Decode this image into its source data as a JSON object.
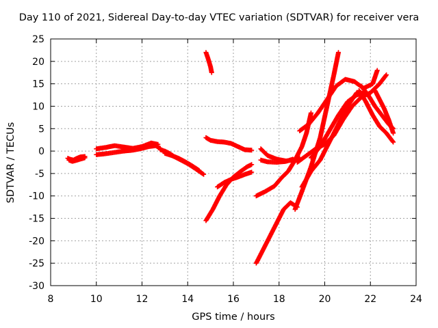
{
  "chart_data": {
    "type": "scatter",
    "title": "Day 110 of 2021, Sidereal Day-to-day VTEC variation (SDTVAR) for receiver vera",
    "xlabel": "GPS time / hours",
    "ylabel": "SDTVAR / TECUs",
    "xlim": [
      8,
      24
    ],
    "ylim": [
      -30,
      25
    ],
    "xticks": [
      8,
      10,
      12,
      14,
      16,
      18,
      20,
      22,
      24
    ],
    "yticks": [
      -30,
      -25,
      -20,
      -15,
      -10,
      -5,
      0,
      5,
      10,
      15,
      20,
      25
    ],
    "grid": true,
    "marker": "+",
    "color": "#ff0000",
    "series": [
      {
        "x": [
          8.75,
          8.9,
          9.0,
          9.15,
          9.3,
          9.5
        ],
        "y": [
          -1.6,
          -1.9,
          -2.0,
          -1.6,
          -1.3,
          -1.2
        ]
      },
      {
        "x": [
          8.8,
          8.95,
          9.1,
          9.3,
          9.5
        ],
        "y": [
          -2.0,
          -2.3,
          -2.1,
          -1.8,
          -1.5
        ]
      },
      {
        "x": [
          10.0,
          10.4,
          10.8,
          11.2,
          11.6,
          12.0,
          12.4,
          12.7
        ],
        "y": [
          0.5,
          0.8,
          1.2,
          0.9,
          0.6,
          1.0,
          1.8,
          1.5
        ]
      },
      {
        "x": [
          10.0,
          10.4,
          10.8,
          11.2,
          11.6,
          12.0,
          12.3,
          12.6,
          12.8
        ],
        "y": [
          -0.8,
          -0.6,
          -0.3,
          0.0,
          0.2,
          0.6,
          1.0,
          1.2,
          0.6
        ]
      },
      {
        "x": [
          12.8,
          13.0,
          13.2,
          13.4,
          13.7,
          14.0,
          14.3,
          14.7
        ],
        "y": [
          0.3,
          0.0,
          -0.5,
          -1.2,
          -2.0,
          -2.8,
          -3.8,
          -5.2
        ]
      },
      {
        "x": [
          13.0,
          13.3,
          13.6,
          13.9,
          14.2,
          14.5
        ],
        "y": [
          -0.5,
          -1.0,
          -1.6,
          -2.4,
          -3.3,
          -4.3
        ]
      },
      {
        "x": [
          14.8,
          14.9,
          15.0,
          15.05
        ],
        "y": [
          22.0,
          20.5,
          18.8,
          17.5
        ]
      },
      {
        "x": [
          14.8,
          15.0,
          15.3,
          15.6,
          15.9,
          16.2,
          16.5,
          16.8
        ],
        "y": [
          3.0,
          2.4,
          2.1,
          2.0,
          1.7,
          1.0,
          0.3,
          0.2
        ]
      },
      {
        "x": [
          14.8,
          15.1,
          15.4,
          15.7,
          16.0,
          16.3,
          16.6,
          16.8
        ],
        "y": [
          -15.5,
          -13.0,
          -10.0,
          -7.5,
          -5.8,
          -4.6,
          -3.5,
          -3.0
        ]
      },
      {
        "x": [
          15.3,
          15.6,
          15.9,
          16.2,
          16.5,
          16.8
        ],
        "y": [
          -8.0,
          -7.0,
          -6.3,
          -5.8,
          -5.2,
          -4.7
        ]
      },
      {
        "x": [
          17.2,
          17.5,
          17.9,
          18.3,
          18.6
        ],
        "y": [
          -2.0,
          -2.4,
          -2.5,
          -2.3,
          -1.8
        ]
      },
      {
        "x": [
          17.2,
          17.5,
          17.9,
          18.3,
          18.6,
          18.9
        ],
        "y": [
          0.5,
          -1.0,
          -1.8,
          -2.2,
          -2.0,
          -1.5
        ]
      },
      {
        "x": [
          17.0,
          17.4,
          17.8,
          18.1,
          18.4,
          18.7,
          19.0,
          19.2,
          19.4
        ],
        "y": [
          -10.0,
          -9.0,
          -7.8,
          -6.0,
          -4.5,
          -2.0,
          1.0,
          4.0,
          8.5
        ]
      },
      {
        "x": [
          17.0,
          17.3,
          17.6,
          17.9,
          18.2,
          18.5,
          18.8
        ],
        "y": [
          -25.0,
          -22.0,
          -19.0,
          -16.0,
          -13.0,
          -11.5,
          -12.5
        ]
      },
      {
        "x": [
          18.7,
          19.0,
          19.4,
          19.8,
          20.1,
          20.4,
          20.6
        ],
        "y": [
          -13.0,
          -9.0,
          -3.5,
          3.0,
          10.0,
          17.0,
          22.0
        ]
      },
      {
        "x": [
          19.0,
          19.4,
          19.8,
          20.2,
          20.6,
          21.0,
          21.4,
          21.8
        ],
        "y": [
          -8.0,
          -4.5,
          -2.0,
          2.0,
          6.0,
          10.0,
          13.0,
          12.5
        ]
      },
      {
        "x": [
          18.8,
          19.2,
          19.6,
          20.0,
          20.4,
          20.8,
          21.2,
          21.6,
          22.0,
          22.4,
          22.7
        ],
        "y": [
          -2.5,
          -1.0,
          0.5,
          1.5,
          3.5,
          7.0,
          10.0,
          12.0,
          13.0,
          15.0,
          17.0
        ]
      },
      {
        "x": [
          18.9,
          19.3,
          19.7,
          20.1,
          20.5,
          20.9,
          21.3,
          21.7,
          22.1,
          22.3
        ],
        "y": [
          4.5,
          6.0,
          8.5,
          11.5,
          14.5,
          16.0,
          15.5,
          14.0,
          15.0,
          18.0
        ]
      },
      {
        "x": [
          19.4,
          19.8,
          20.2,
          20.6,
          21.0,
          21.4,
          21.7
        ],
        "y": [
          -1.5,
          1.0,
          4.5,
          8.0,
          11.0,
          12.5,
          13.0
        ]
      },
      {
        "x": [
          21.5,
          21.8,
          22.1,
          22.4,
          22.7,
          23.0
        ],
        "y": [
          13.5,
          11.0,
          8.0,
          5.5,
          4.0,
          2.0
        ]
      },
      {
        "x": [
          21.6,
          21.9,
          22.2,
          22.5,
          22.8,
          23.0
        ],
        "y": [
          14.5,
          12.5,
          10.0,
          8.0,
          6.0,
          5.0
        ]
      },
      {
        "x": [
          22.2,
          22.4,
          22.6,
          22.8,
          23.0
        ],
        "y": [
          13.5,
          11.5,
          9.5,
          7.0,
          4.0
        ]
      }
    ]
  }
}
